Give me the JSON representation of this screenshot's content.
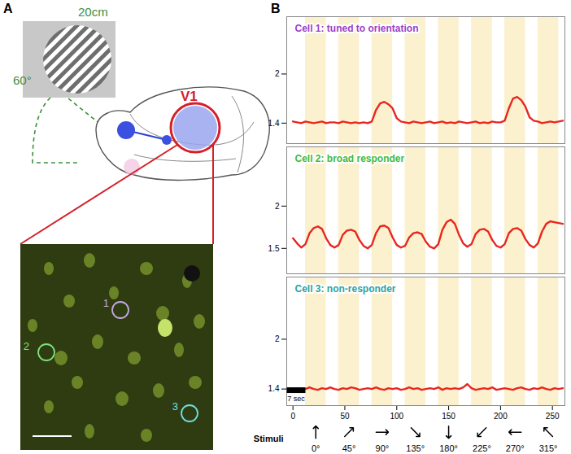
{
  "panel_a": {
    "label": "A",
    "screen_width": "20cm",
    "visual_angle": "60°",
    "area": "V1",
    "cells": [
      {
        "label": "1",
        "color": "#c2a9e6"
      },
      {
        "label": "2",
        "color": "#7fe07f"
      },
      {
        "label": "3",
        "color": "#6fe0e0"
      }
    ]
  },
  "panel_b": {
    "label": "B",
    "stimuli": {
      "title": "Stimuli",
      "labels": [
        "0°",
        "45°",
        "90°",
        "135°",
        "180°",
        "225°",
        "270°",
        "315°"
      ],
      "angles": [
        0,
        45,
        90,
        135,
        180,
        225,
        270,
        315
      ],
      "on": [
        12,
        44,
        76,
        108,
        140,
        172,
        204,
        236
      ],
      "off": [
        32,
        64,
        96,
        128,
        160,
        192,
        224,
        256
      ]
    },
    "scale_bar": {
      "start": -6,
      "end": 12,
      "label": "7 sec"
    }
  },
  "chart_data": [
    {
      "type": "line",
      "title": "Cell 1: tuned to orientation",
      "x": [
        0,
        4,
        8,
        12,
        16,
        20,
        24,
        28,
        32,
        36,
        40,
        44,
        48,
        52,
        56,
        60,
        64,
        68,
        72,
        76,
        80,
        84,
        88,
        92,
        96,
        100,
        104,
        108,
        112,
        116,
        120,
        124,
        128,
        132,
        136,
        140,
        144,
        148,
        152,
        156,
        160,
        164,
        168,
        172,
        176,
        180,
        184,
        188,
        192,
        196,
        200,
        204,
        208,
        212,
        216,
        220,
        224,
        228,
        232,
        236,
        240,
        244,
        248,
        252,
        256,
        260
      ],
      "series": [
        {
          "color": "#e8271f",
          "values": [
            1.42,
            1.41,
            1.4,
            1.42,
            1.41,
            1.4,
            1.41,
            1.42,
            1.4,
            1.41,
            1.41,
            1.4,
            1.42,
            1.41,
            1.4,
            1.41,
            1.4,
            1.41,
            1.4,
            1.42,
            1.56,
            1.64,
            1.66,
            1.63,
            1.58,
            1.46,
            1.42,
            1.41,
            1.4,
            1.42,
            1.41,
            1.4,
            1.41,
            1.42,
            1.4,
            1.41,
            1.42,
            1.4,
            1.41,
            1.4,
            1.42,
            1.41,
            1.4,
            1.41,
            1.42,
            1.4,
            1.41,
            1.4,
            1.42,
            1.41,
            1.41,
            1.43,
            1.58,
            1.7,
            1.72,
            1.68,
            1.6,
            1.47,
            1.43,
            1.42,
            1.4,
            1.41,
            1.42,
            1.41,
            1.42,
            1.43
          ]
        }
      ],
      "xlim": [
        -6,
        262
      ],
      "xticks": [
        0,
        50,
        100,
        150,
        200,
        250
      ],
      "ylim": [
        1.15,
        2.7
      ],
      "yticks": [
        1.4,
        2
      ],
      "tick_labels": "y"
    },
    {
      "type": "line",
      "title": "Cell 2: broad responder",
      "x": [
        0,
        4,
        8,
        12,
        16,
        20,
        24,
        28,
        32,
        36,
        40,
        44,
        48,
        52,
        56,
        60,
        64,
        68,
        72,
        76,
        80,
        84,
        88,
        92,
        96,
        100,
        104,
        108,
        112,
        116,
        120,
        124,
        128,
        132,
        136,
        140,
        144,
        148,
        152,
        156,
        160,
        164,
        168,
        172,
        176,
        180,
        184,
        188,
        192,
        196,
        200,
        204,
        208,
        212,
        216,
        220,
        224,
        228,
        232,
        236,
        240,
        244,
        248,
        252,
        256,
        260
      ],
      "series": [
        {
          "color": "#e8271f",
          "values": [
            1.62,
            1.56,
            1.51,
            1.55,
            1.68,
            1.74,
            1.76,
            1.73,
            1.62,
            1.54,
            1.51,
            1.54,
            1.66,
            1.71,
            1.72,
            1.7,
            1.6,
            1.53,
            1.5,
            1.54,
            1.68,
            1.76,
            1.77,
            1.74,
            1.63,
            1.54,
            1.51,
            1.53,
            1.63,
            1.68,
            1.69,
            1.67,
            1.58,
            1.52,
            1.5,
            1.55,
            1.72,
            1.81,
            1.84,
            1.79,
            1.66,
            1.56,
            1.52,
            1.55,
            1.67,
            1.72,
            1.73,
            1.7,
            1.6,
            1.53,
            1.51,
            1.55,
            1.68,
            1.73,
            1.74,
            1.71,
            1.61,
            1.54,
            1.51,
            1.56,
            1.7,
            1.79,
            1.82,
            1.81,
            1.8,
            1.79
          ]
        }
      ],
      "xlim": [
        -6,
        262
      ],
      "xticks": [
        0,
        50,
        100,
        150,
        200,
        250
      ],
      "ylim": [
        1.2,
        2.7
      ],
      "yticks": [
        1.5,
        2
      ],
      "tick_labels": "y"
    },
    {
      "type": "line",
      "title": "Cell 3: non-responder",
      "x": [
        0,
        4,
        8,
        12,
        16,
        20,
        24,
        28,
        32,
        36,
        40,
        44,
        48,
        52,
        56,
        60,
        64,
        68,
        72,
        76,
        80,
        84,
        88,
        92,
        96,
        100,
        104,
        108,
        112,
        116,
        120,
        124,
        128,
        132,
        136,
        140,
        144,
        148,
        152,
        156,
        160,
        164,
        168,
        172,
        176,
        180,
        184,
        188,
        192,
        196,
        200,
        204,
        208,
        212,
        216,
        220,
        224,
        228,
        232,
        236,
        240,
        244,
        248,
        252,
        256,
        260
      ],
      "series": [
        {
          "color": "#e8271f",
          "values": [
            1.4,
            1.41,
            1.39,
            1.4,
            1.42,
            1.4,
            1.39,
            1.41,
            1.4,
            1.42,
            1.4,
            1.39,
            1.41,
            1.4,
            1.42,
            1.41,
            1.39,
            1.4,
            1.41,
            1.4,
            1.42,
            1.4,
            1.39,
            1.41,
            1.4,
            1.41,
            1.39,
            1.4,
            1.42,
            1.4,
            1.41,
            1.39,
            1.4,
            1.41,
            1.4,
            1.42,
            1.39,
            1.41,
            1.4,
            1.41,
            1.4,
            1.42,
            1.46,
            1.41,
            1.39,
            1.4,
            1.41,
            1.4,
            1.42,
            1.39,
            1.4,
            1.41,
            1.4,
            1.39,
            1.41,
            1.42,
            1.4,
            1.39,
            1.41,
            1.4,
            1.42,
            1.4,
            1.39,
            1.41,
            1.4,
            1.41
          ]
        }
      ],
      "xlim": [
        -6,
        262
      ],
      "xticks": [
        0,
        50,
        100,
        150,
        200,
        250
      ],
      "ylim": [
        1.2,
        2.75
      ],
      "yticks": [
        1.4,
        2
      ],
      "tick_labels": true
    }
  ]
}
